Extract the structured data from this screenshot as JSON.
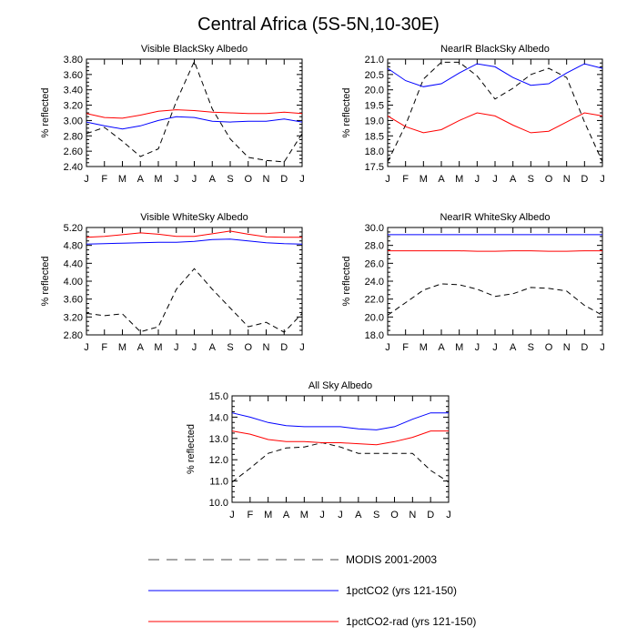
{
  "figure": {
    "title": "Central Africa (5S-5N,10-30E)"
  },
  "colors": {
    "MODIS": "#000000",
    "CO2": "#0000ff",
    "CO2rad": "#ff0000"
  },
  "legend": [
    {
      "series": "MODIS",
      "label": "MODIS 2001-2003",
      "style": "dashed"
    },
    {
      "series": "CO2",
      "label": "1pctCO2 (yrs 121-150)",
      "style": "solid"
    },
    {
      "series": "CO2rad",
      "label": "1pctCO2-rad (yrs 121-150)",
      "style": "solid"
    }
  ],
  "chart_data": [
    {
      "type": "line",
      "title": "Visible BlackSky Albedo",
      "ylabel": "% reflected",
      "x": [
        "J",
        "F",
        "M",
        "A",
        "M",
        "J",
        "J",
        "A",
        "S",
        "O",
        "N",
        "D",
        "J"
      ],
      "ylim": [
        2.4,
        3.8
      ],
      "yticks": [
        "2.40",
        "2.60",
        "2.80",
        "3.00",
        "3.20",
        "3.40",
        "3.60",
        "3.80"
      ],
      "series": [
        {
          "name": "MODIS 2001-2003",
          "values": [
            2.83,
            2.91,
            2.73,
            2.53,
            2.63,
            3.25,
            3.77,
            3.15,
            2.76,
            2.52,
            2.48,
            2.46,
            2.83
          ]
        },
        {
          "name": "1pctCO2 (yrs 121-150)",
          "values": [
            2.98,
            2.93,
            2.89,
            2.93,
            3.0,
            3.05,
            3.04,
            2.99,
            2.98,
            2.99,
            2.99,
            3.02,
            2.98
          ]
        },
        {
          "name": "1pctCO2-rad (yrs 121-150)",
          "values": [
            3.09,
            3.04,
            3.03,
            3.07,
            3.12,
            3.14,
            3.13,
            3.11,
            3.1,
            3.09,
            3.09,
            3.11,
            3.09
          ]
        }
      ]
    },
    {
      "type": "line",
      "title": "NearIR BlackSky Albedo",
      "ylabel": "% reflected",
      "x": [
        "J",
        "F",
        "M",
        "A",
        "M",
        "J",
        "J",
        "A",
        "S",
        "O",
        "N",
        "D",
        "J"
      ],
      "ylim": [
        17.5,
        21.0
      ],
      "yticks": [
        "17.5",
        "18.0",
        "18.5",
        "19.0",
        "19.5",
        "20.0",
        "20.5",
        "21.0"
      ],
      "series": [
        {
          "name": "MODIS 2001-2003",
          "values": [
            17.65,
            18.85,
            20.35,
            20.9,
            20.9,
            20.45,
            19.7,
            20.05,
            20.5,
            20.7,
            20.4,
            18.95,
            17.65
          ]
        },
        {
          "name": "1pctCO2 (yrs 121-150)",
          "values": [
            20.7,
            20.3,
            20.1,
            20.2,
            20.55,
            20.85,
            20.75,
            20.4,
            20.15,
            20.2,
            20.55,
            20.85,
            20.7
          ]
        },
        {
          "name": "1pctCO2-rad (yrs 121-150)",
          "values": [
            19.15,
            18.8,
            18.6,
            18.7,
            19.0,
            19.25,
            19.15,
            18.85,
            18.6,
            18.65,
            18.95,
            19.25,
            19.15
          ]
        }
      ]
    },
    {
      "type": "line",
      "title": "Visible WhiteSky Albedo",
      "ylabel": "% reflected",
      "x": [
        "J",
        "F",
        "M",
        "A",
        "M",
        "J",
        "J",
        "A",
        "S",
        "O",
        "N",
        "D",
        "J"
      ],
      "ylim": [
        2.8,
        5.2
      ],
      "yticks": [
        "2.80",
        "3.20",
        "3.60",
        "4.00",
        "4.40",
        "4.80",
        "5.20"
      ],
      "series": [
        {
          "name": "MODIS 2001-2003",
          "values": [
            3.28,
            3.23,
            3.27,
            2.87,
            2.98,
            3.82,
            4.28,
            3.82,
            3.4,
            2.98,
            3.08,
            2.86,
            3.28
          ]
        },
        {
          "name": "1pctCO2 (yrs 121-150)",
          "values": [
            4.83,
            4.84,
            4.85,
            4.86,
            4.87,
            4.87,
            4.89,
            4.93,
            4.94,
            4.9,
            4.86,
            4.84,
            4.83
          ]
        },
        {
          "name": "1pctCO2-rad (yrs 121-150)",
          "values": [
            4.98,
            5.0,
            5.04,
            5.08,
            5.05,
            5.0,
            5.0,
            5.06,
            5.12,
            5.05,
            4.99,
            4.98,
            4.98
          ]
        }
      ]
    },
    {
      "type": "line",
      "title": "NearIR WhiteSky Albedo",
      "ylabel": "% reflected",
      "x": [
        "J",
        "F",
        "M",
        "A",
        "M",
        "J",
        "J",
        "A",
        "S",
        "O",
        "N",
        "D",
        "J"
      ],
      "ylim": [
        18.0,
        30.0
      ],
      "yticks": [
        "18.0",
        "20.0",
        "22.0",
        "24.0",
        "26.0",
        "28.0",
        "30.0"
      ],
      "series": [
        {
          "name": "MODIS 2001-2003",
          "values": [
            20.2,
            21.6,
            23.0,
            23.7,
            23.6,
            23.1,
            22.3,
            22.6,
            23.3,
            23.2,
            22.9,
            21.3,
            20.2
          ]
        },
        {
          "name": "1pctCO2 (yrs 121-150)",
          "values": [
            29.2,
            29.2,
            29.2,
            29.2,
            29.2,
            29.2,
            29.2,
            29.2,
            29.2,
            29.2,
            29.2,
            29.2,
            29.2
          ]
        },
        {
          "name": "1pctCO2-rad (yrs 121-150)",
          "values": [
            27.4,
            27.4,
            27.4,
            27.4,
            27.4,
            27.35,
            27.35,
            27.4,
            27.4,
            27.35,
            27.35,
            27.4,
            27.4
          ]
        }
      ]
    },
    {
      "type": "line",
      "title": "All Sky Albedo",
      "ylabel": "% reflected",
      "x": [
        "J",
        "F",
        "M",
        "A",
        "M",
        "J",
        "J",
        "A",
        "S",
        "O",
        "N",
        "D",
        "J"
      ],
      "ylim": [
        10.0,
        15.0
      ],
      "yticks": [
        "10.0",
        "11.0",
        "12.0",
        "13.0",
        "14.0",
        "15.0"
      ],
      "series": [
        {
          "name": "MODIS 2001-2003",
          "values": [
            10.95,
            11.6,
            12.3,
            12.55,
            12.6,
            12.8,
            12.6,
            12.3,
            12.3,
            12.3,
            12.3,
            11.5,
            10.95
          ]
        },
        {
          "name": "1pctCO2 (yrs 121-150)",
          "values": [
            14.2,
            14.0,
            13.75,
            13.6,
            13.55,
            13.55,
            13.55,
            13.45,
            13.4,
            13.55,
            13.9,
            14.2,
            14.2
          ]
        },
        {
          "name": "1pctCO2-rad (yrs 121-150)",
          "values": [
            13.35,
            13.2,
            12.95,
            12.85,
            12.85,
            12.8,
            12.8,
            12.75,
            12.7,
            12.85,
            13.05,
            13.35,
            13.35
          ]
        }
      ]
    }
  ]
}
